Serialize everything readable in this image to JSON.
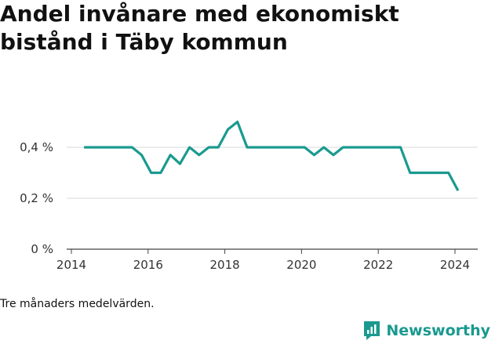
{
  "title": "Andel invånare med ekonomiskt bistånd i Täby kommun",
  "note": "Tre månaders medelvärden.",
  "brand": {
    "name": "Newsworthy",
    "color": "#1a9a8f",
    "icon": "newsworthy-logo-icon"
  },
  "chart_data": {
    "type": "line",
    "title": "Andel invånare med ekonomiskt bistånd i Täby kommun",
    "xlabel": "",
    "ylabel": "",
    "xlim": [
      2014,
      2024.5
    ],
    "ylim": [
      0,
      0.45
    ],
    "x_ticks": [
      2014,
      2016,
      2018,
      2020,
      2022,
      2024
    ],
    "y_ticks": [
      {
        "value": 0,
        "label": "0 %"
      },
      {
        "value": 0.2,
        "label": "0,2 %"
      },
      {
        "value": 0.4,
        "label": "0,4 %"
      }
    ],
    "grid": true,
    "line_color": "#1a9a8f",
    "series": [
      {
        "x": [
          2014.33,
          2014.58,
          2014.83,
          2015.08,
          2015.33,
          2015.58,
          2015.83,
          2016.08,
          2016.33,
          2016.58,
          2016.83,
          2017.08,
          2017.33,
          2017.58,
          2017.83,
          2018.08,
          2018.33,
          2018.58,
          2018.83,
          2019.08,
          2019.33,
          2019.58,
          2019.83,
          2020.08,
          2020.33,
          2020.58,
          2020.83,
          2021.08,
          2021.33,
          2021.58,
          2021.83,
          2022.08,
          2022.33,
          2022.58,
          2022.83,
          2023.08,
          2023.33,
          2023.58,
          2023.83,
          2024.08
        ],
        "y": [
          0.4,
          0.4,
          0.4,
          0.4,
          0.4,
          0.4,
          0.37,
          0.3,
          0.3,
          0.37,
          0.335,
          0.4,
          0.37,
          0.4,
          0.4,
          0.47,
          0.5,
          0.4,
          0.4,
          0.4,
          0.4,
          0.4,
          0.4,
          0.4,
          0.37,
          0.4,
          0.37,
          0.4,
          0.4,
          0.4,
          0.4,
          0.4,
          0.4,
          0.4,
          0.3,
          0.3,
          0.3,
          0.3,
          0.3,
          0.23
        ]
      }
    ]
  }
}
